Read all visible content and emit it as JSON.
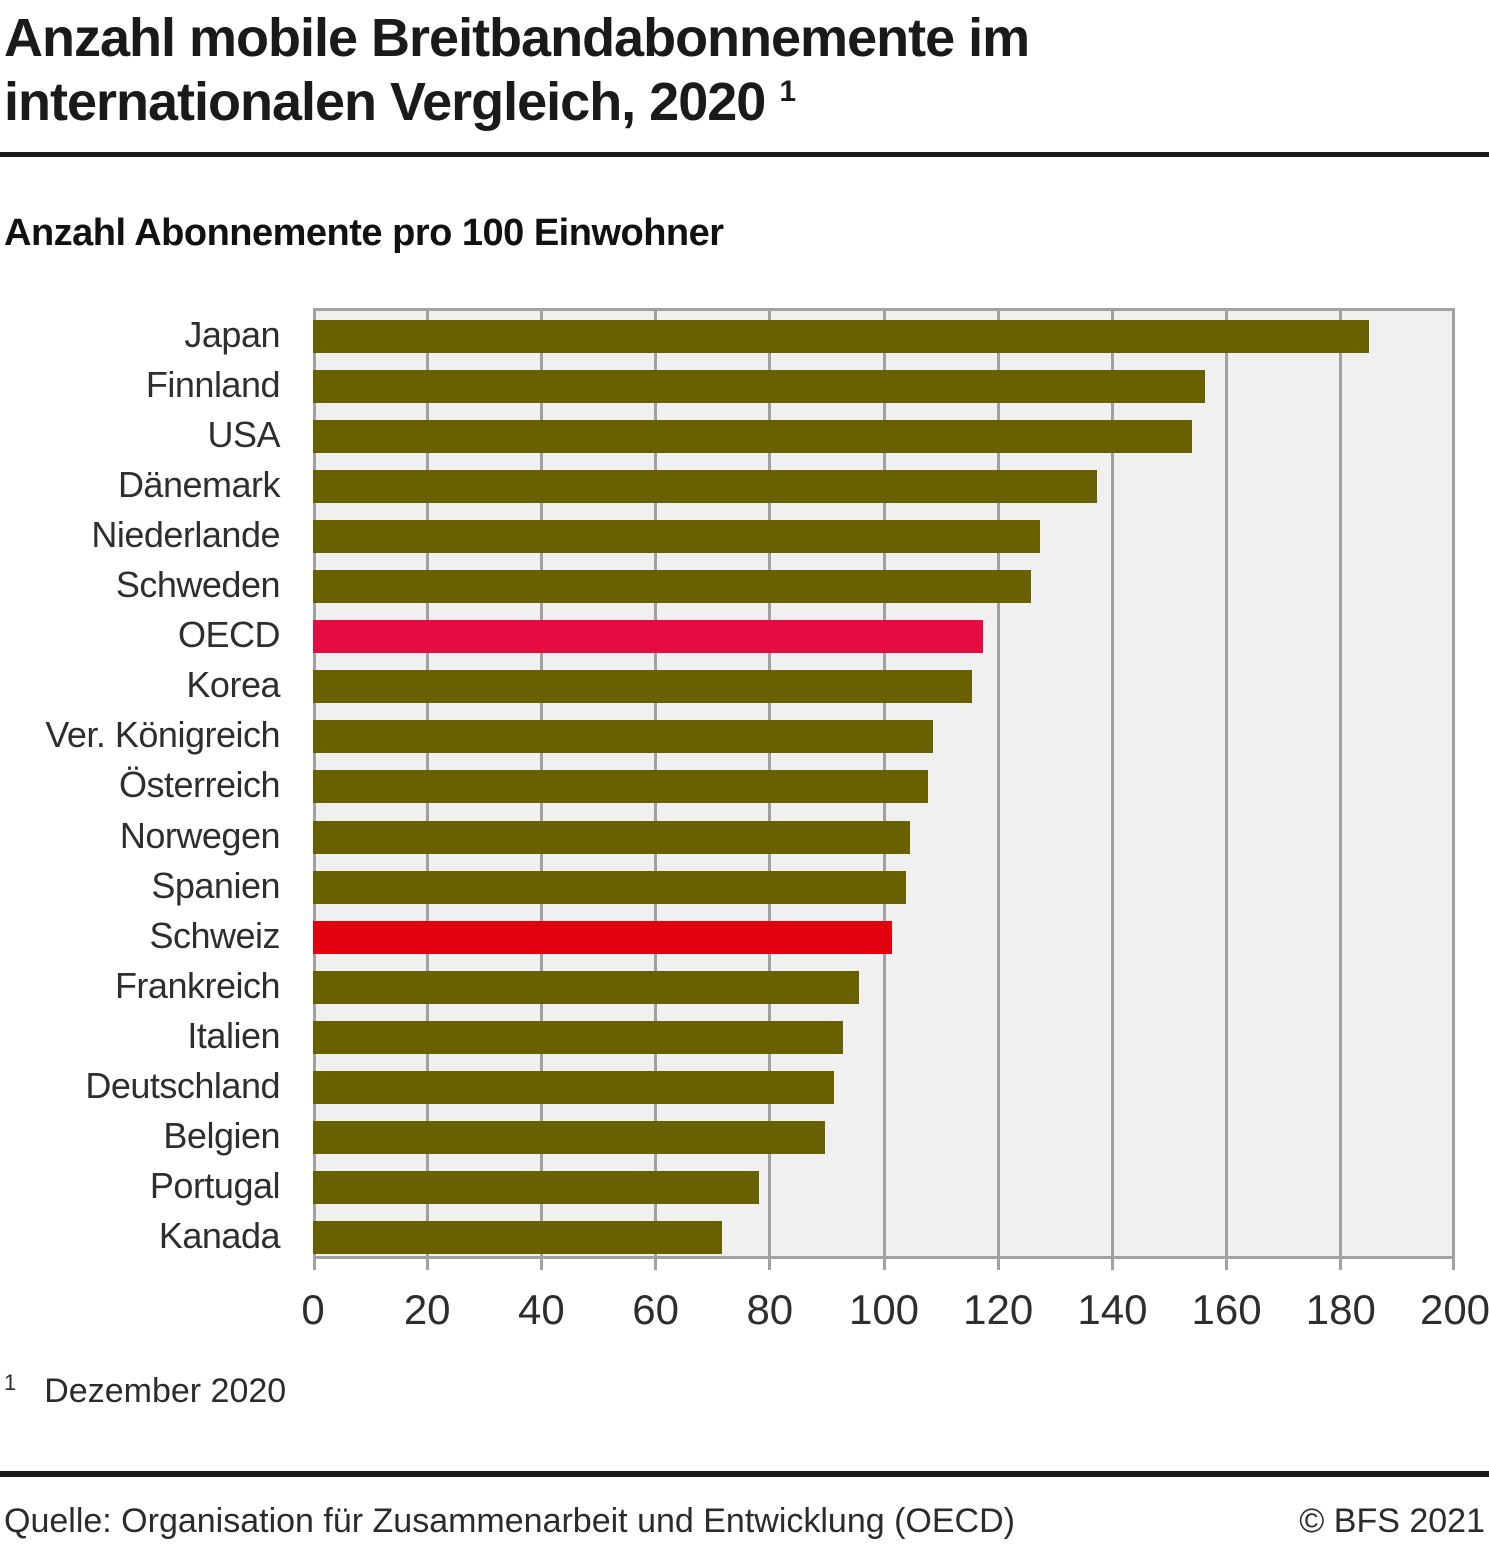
{
  "header": {
    "title_line1": "Anzahl mobile Breitbandabonnemente im",
    "title_line2": "internationalen Vergleich, 2020",
    "title_footnote_marker": "1",
    "subtitle": "Anzahl Abonnemente pro 100 Einwohner"
  },
  "chart_data": {
    "type": "bar",
    "orientation": "horizontal",
    "title": "Anzahl mobile Breitbandabonnemente im internationalen Vergleich, 2020",
    "xlabel": "Anzahl Abonnemente pro 100 Einwohner",
    "ylabel": "",
    "xlim": [
      0,
      200
    ],
    "xticks": [
      0,
      20,
      40,
      60,
      80,
      100,
      120,
      140,
      160,
      180,
      200
    ],
    "grid": true,
    "legend": "none",
    "categories": [
      "Japan",
      "Finnland",
      "USA",
      "Dänemark",
      "Niederlande",
      "Schweden",
      "OECD",
      "Korea",
      "Ver. Königreich",
      "Österreich",
      "Norwegen",
      "Spanien",
      "Schweiz",
      "Frankreich",
      "Italien",
      "Deutschland",
      "Belgien",
      "Portugal",
      "Kanada"
    ],
    "values": [
      184.9,
      156.3,
      153.9,
      137.3,
      127.3,
      125.8,
      117.3,
      115.4,
      108.5,
      107.7,
      104.5,
      103.9,
      101.4,
      95.6,
      92.9,
      91.2,
      89.6,
      78.1,
      71.6
    ],
    "highlights": {
      "OECD": "oecd",
      "Schweiz": "swiss"
    }
  },
  "colors": {
    "bar_default": "#696100",
    "bar_oecd": "#e50c41",
    "bar_swiss": "#e2000e",
    "plot_background": "#f0f0f0",
    "grid_line": "#a1a1a1",
    "text_dark": "#1a1a1a",
    "text_label": "#2e2e2e"
  },
  "footnote": {
    "marker": "1",
    "text": "Dezember 2020"
  },
  "footer": {
    "source": "Quelle: Organisation für Zusammenarbeit und Entwicklung (OECD)",
    "copyright": "© BFS 2021"
  }
}
